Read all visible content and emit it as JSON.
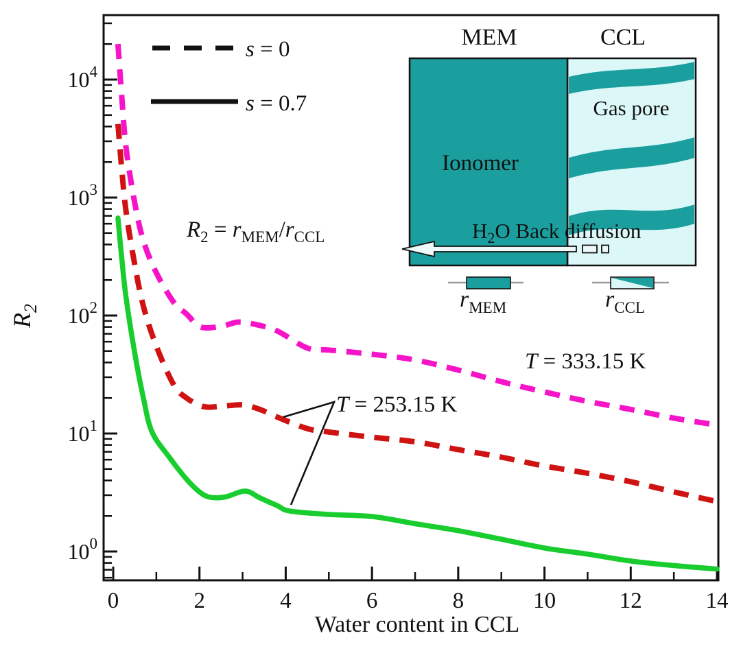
{
  "chart_data": {
    "type": "line",
    "title": "",
    "xlabel": "Water content in CCL",
    "ylabel": "R2",
    "x_range": [
      0,
      14
    ],
    "y_scale": "log",
    "y_range": [
      0.55,
      36000
    ],
    "x_major_ticks": [
      0,
      2,
      4,
      6,
      8,
      10,
      12,
      14
    ],
    "x_minor_ticks": [
      1,
      3,
      5,
      7,
      9,
      11,
      13
    ],
    "y_major_tick_exponents": [
      0,
      1,
      2,
      3,
      4
    ],
    "grid": false,
    "legend_position": "top-left",
    "legend": [
      {
        "label": "s = 0",
        "line_style": "dashed",
        "line_color": "#111111"
      },
      {
        "label": "s = 0.7",
        "line_style": "solid",
        "line_color": "#111111"
      }
    ],
    "annotations": [
      "R2 = rMEM/rCCL",
      "T = 333.15 K",
      "T = 253.15 K"
    ],
    "series": [
      {
        "name": "s = 0, T = 333.15 K",
        "style": "dashed",
        "color": "#F614C8",
        "x": [
          0.11,
          0.2,
          0.3,
          0.5,
          0.7,
          1.0,
          1.4,
          1.7,
          2.03,
          2.5,
          2.9,
          3.3,
          3.8,
          4.5,
          5,
          6,
          7,
          8,
          9,
          10,
          11,
          12,
          13,
          14
        ],
        "y": [
          20000,
          7000,
          2600,
          900,
          430,
          230,
          130,
          103,
          80,
          81,
          88,
          84,
          74,
          53,
          51,
          47,
          42,
          34.5,
          27.5,
          22.5,
          18.7,
          16,
          13.5,
          11.8
        ]
      },
      {
        "name": "s = 0, T = 253.15 K",
        "style": "dashed",
        "color": "#CE1312",
        "x": [
          0.11,
          0.2,
          0.3,
          0.5,
          0.7,
          1.0,
          1.4,
          1.7,
          2.1,
          2.5,
          3.0,
          3.4,
          3.8,
          4.5,
          5,
          6,
          7,
          8,
          9,
          10,
          11,
          12,
          13,
          14
        ],
        "y": [
          4200,
          1700,
          750,
          270,
          120,
          55,
          26,
          20,
          16.9,
          17,
          17.5,
          16,
          13.8,
          11,
          10.3,
          9.3,
          8.5,
          7.3,
          6.3,
          5.3,
          4.6,
          3.9,
          3.2,
          2.65
        ]
      },
      {
        "name": "s = 0.7, T = 253.15 K",
        "style": "solid",
        "color": "#19CD2F",
        "x": [
          0.11,
          0.2,
          0.3,
          0.5,
          0.7,
          0.9,
          1.3,
          1.7,
          2.0,
          2.25,
          2.6,
          3.06,
          3.4,
          3.8,
          4.1,
          5,
          6,
          7,
          8,
          9,
          10,
          11,
          12,
          13,
          14
        ],
        "y": [
          670,
          300,
          140,
          48,
          20,
          10.3,
          6.3,
          4.1,
          3.2,
          2.88,
          2.9,
          3.25,
          2.85,
          2.45,
          2.2,
          2.06,
          1.98,
          1.72,
          1.5,
          1.27,
          1.07,
          0.95,
          0.83,
          0.76,
          0.71
        ]
      }
    ]
  },
  "colors": {
    "magenta_curve": "#F614C8",
    "red_curve": "#CE1312",
    "green_curve": "#19CD2F",
    "teal": "#1B9E9E",
    "light_cyan": "#DCF7F7",
    "arrow_fill": "#EDF8F8",
    "axis": "#111111"
  },
  "axes": {
    "x_label": "Water content in CCL",
    "y_label_base": "R",
    "y_label_sub": "2",
    "y_tick_base": "10"
  },
  "legend": {
    "item1": {
      "var": "s",
      "rest": " = 0"
    },
    "item2": {
      "var": "s",
      "rest": " = 0.7"
    }
  },
  "formula": {
    "lhs": "R",
    "lhs_sub": "2",
    "eq": " = ",
    "num": "r",
    "num_sub": "MEM",
    "slash": "/",
    "den": "r",
    "den_sub": "CCL"
  },
  "temp_labels": {
    "hot": {
      "var": "T",
      "rest": " = 333.15 K"
    },
    "cold": {
      "var": "T",
      "rest": " = 253.15 K"
    }
  },
  "inset": {
    "mem_title": "MEM",
    "ccl_title": "CCL",
    "ionomer_label": "Ionomer",
    "gas_pore_label": "Gas pore",
    "h2o": {
      "h": "H",
      "sub": "2",
      "rest": "O Back diffusion"
    },
    "r_mem": {
      "base": "r",
      "sub": "MEM"
    },
    "r_ccl": {
      "base": "r",
      "sub": "CCL"
    },
    "bands": [
      {
        "yl": 112,
        "yr": 90,
        "t": 25,
        "a": 16
      },
      {
        "yl": 230,
        "yr": 200,
        "t": 30,
        "a": 20
      },
      {
        "yl": 315,
        "yr": 298,
        "t": 28,
        "a": 22
      }
    ]
  }
}
